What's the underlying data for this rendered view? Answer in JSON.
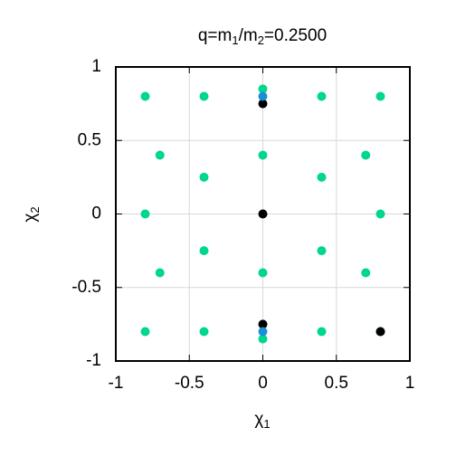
{
  "chart_data": {
    "type": "scatter",
    "title": [
      "q=m",
      "1",
      "/m",
      "2",
      "=0.2500"
    ],
    "xlabel": [
      "χ",
      "1"
    ],
    "ylabel": [
      "χ",
      "2"
    ],
    "xlim": [
      -1,
      1
    ],
    "ylim": [
      -1,
      1
    ],
    "xticks": [
      -1,
      -0.5,
      0,
      0.5,
      1
    ],
    "yticks": [
      -1,
      -0.5,
      0,
      0.5,
      1
    ],
    "grid": true,
    "series": [
      {
        "color": "#00d68f",
        "x": [
          -0.8,
          -0.4,
          0,
          0.4,
          0.8,
          -0.7,
          0,
          0.7,
          -0.4,
          0.4,
          -0.8,
          0.8,
          -0.4,
          0.4,
          -0.7,
          0,
          0.7,
          -0.8,
          -0.4,
          0.4,
          0.8,
          0
        ],
        "y": [
          0.8,
          0.8,
          0.85,
          0.8,
          0.8,
          0.4,
          0.4,
          0.4,
          0.25,
          0.25,
          0,
          0,
          -0.25,
          -0.25,
          -0.4,
          -0.4,
          -0.4,
          -0.8,
          -0.8,
          -0.8,
          -0.8,
          -0.85
        ]
      },
      {
        "color": "#000000",
        "x": [
          0,
          0,
          0,
          0.8
        ],
        "y": [
          0.75,
          0,
          -0.75,
          -0.8
        ]
      },
      {
        "color": "#1a8fd6",
        "x": [
          0,
          0
        ],
        "y": [
          0.8,
          -0.8
        ]
      }
    ]
  }
}
